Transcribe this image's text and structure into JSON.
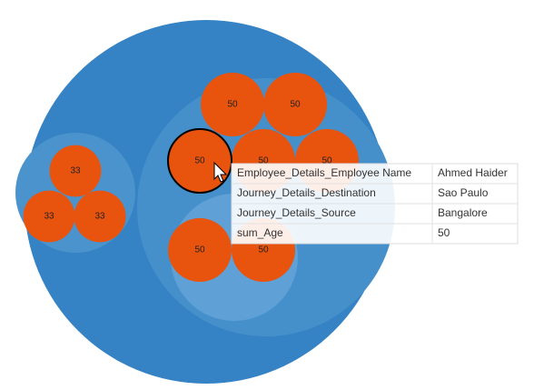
{
  "chart_data": {
    "type": "pack",
    "values": [
      33,
      33,
      33,
      50,
      50,
      50,
      50,
      50,
      50,
      50
    ],
    "color": "#e8530e",
    "tooltip": {
      "rows": [
        [
          "Employee_Details_Employee Name",
          "Ahmed Haider"
        ],
        [
          "Journey_Details_Destination",
          "Sao Paulo"
        ],
        [
          "Journey_Details_Source",
          "Bangalore"
        ],
        [
          "sum_Age",
          "50"
        ]
      ]
    }
  }
}
